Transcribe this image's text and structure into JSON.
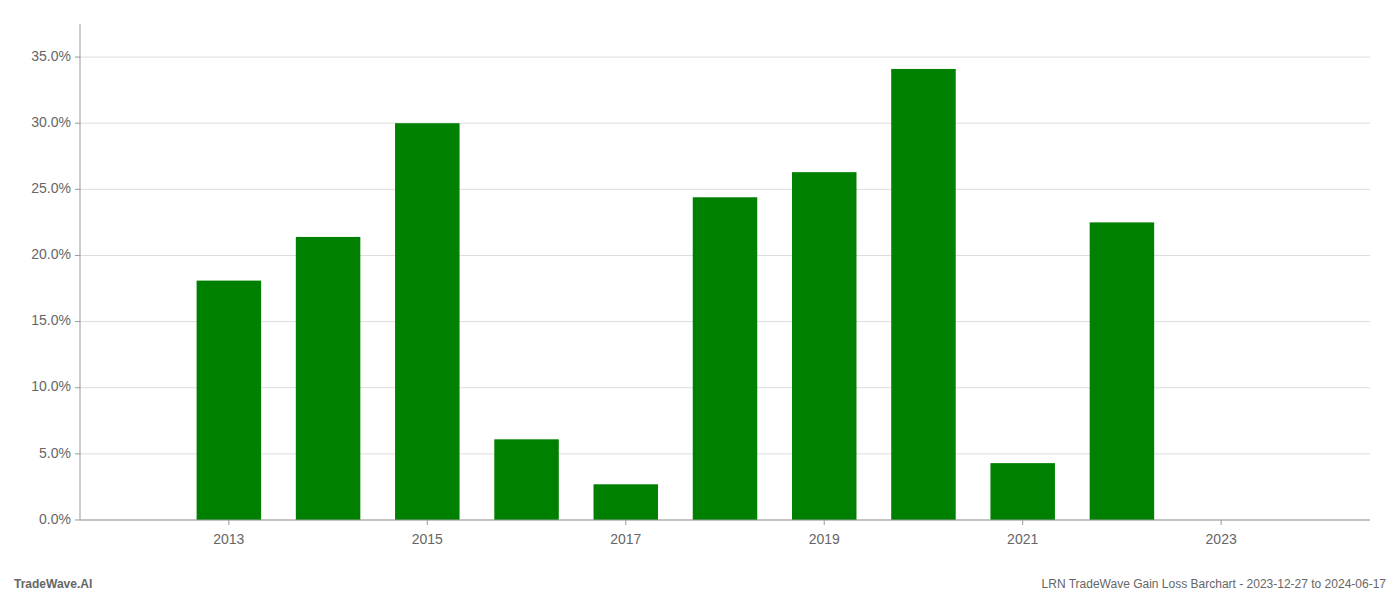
{
  "chart_data": {
    "type": "bar",
    "x": [
      2013,
      2014,
      2015,
      2016,
      2017,
      2018,
      2019,
      2020,
      2021,
      2022
    ],
    "values": [
      0.181,
      0.214,
      0.3,
      0.061,
      0.027,
      0.244,
      0.263,
      0.341,
      0.043,
      0.225
    ],
    "color": "#008000",
    "xlim": [
      2011.5,
      2024.5
    ],
    "xticks": [
      2013,
      2015,
      2017,
      2019,
      2021,
      2023
    ],
    "ylim": [
      0.0,
      0.375
    ],
    "yticks": [
      {
        "value": 0.0,
        "label": "0.0%"
      },
      {
        "value": 0.05,
        "label": "5.0%"
      },
      {
        "value": 0.1,
        "label": "10.0%"
      },
      {
        "value": 0.15,
        "label": "15.0%"
      },
      {
        "value": 0.2,
        "label": "20.0%"
      },
      {
        "value": 0.25,
        "label": "25.0%"
      },
      {
        "value": 0.3,
        "label": "30.0%"
      },
      {
        "value": 0.35,
        "label": "35.0%"
      }
    ],
    "grid": true,
    "annotations": [
      "TradeWave.AI",
      "LRN TradeWave Gain Loss Barchart - 2023-12-27 to 2024-06-17"
    ]
  }
}
